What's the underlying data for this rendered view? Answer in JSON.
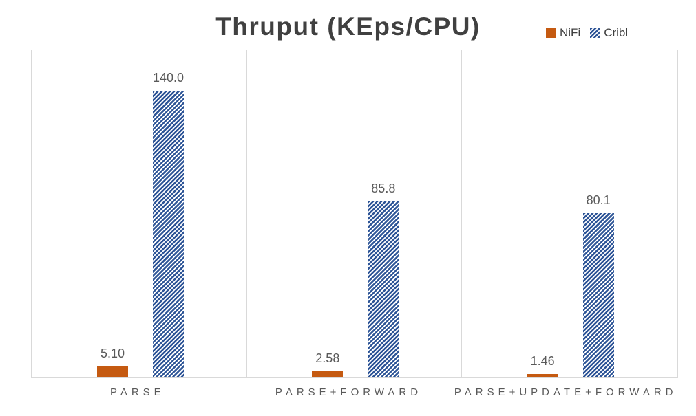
{
  "title": "Thruput (KEps/CPU)",
  "legend": [
    {
      "name": "NiFi",
      "swatch": "solid-square",
      "color": "#C55A11"
    },
    {
      "name": "Cribl",
      "swatch": "diagonal-hatch-square",
      "color": "#2E5597"
    }
  ],
  "colors": {
    "nifi_orange": "#C55A11",
    "cribl_blue": "#2E5597",
    "hatch_background": "#FFFFFF",
    "title_text": "#404040",
    "label_text": "#595959",
    "axis_line": "#D9D9D9"
  },
  "chart_data": {
    "type": "bar",
    "title": "Thruput (KEps/CPU)",
    "categories": [
      "PARSE",
      "PARSE+FORWARD",
      "PARSE+UPDATE+FORWARD"
    ],
    "series": [
      {
        "name": "NiFi",
        "values": [
          5.1,
          2.58,
          1.46
        ],
        "labels": [
          "5.10",
          "2.58",
          "1.46"
        ],
        "color": "#C55A11",
        "fill": "solid"
      },
      {
        "name": "Cribl",
        "values": [
          140.0,
          85.8,
          80.1
        ],
        "labels": [
          "140.0",
          "85.8",
          "80.1"
        ],
        "color": "#2E5597",
        "fill": "diagonal-hatch"
      }
    ],
    "xlabel": "",
    "ylabel": "",
    "ylim": [
      0,
      160
    ],
    "y_axis_visible": false,
    "grid": "vertical-category-borders-only",
    "legend_position": "top-right",
    "data_labels": "above-bars"
  }
}
